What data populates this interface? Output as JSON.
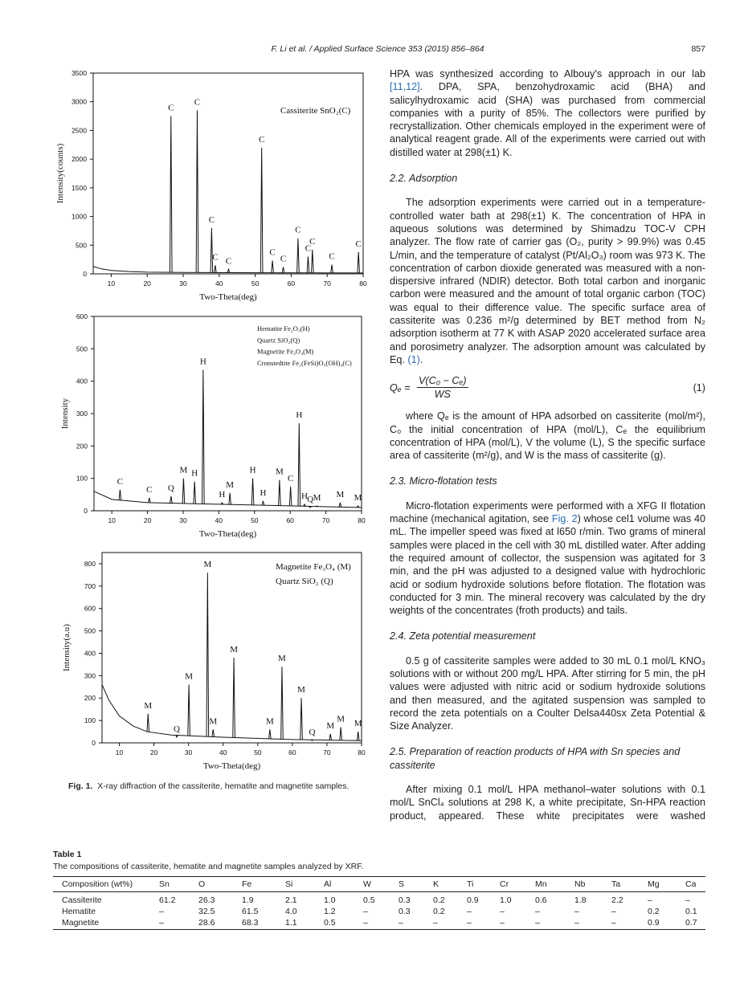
{
  "header": {
    "running_title": "F. Li et al. / Applied Surface Science 353 (2015) 856–864",
    "page": "857"
  },
  "chart_data": [
    {
      "type": "xrd",
      "legend": [
        "Cassiterite SnO₂(C)"
      ],
      "x_label": "Two-Theta(deg)",
      "y_label": "Intensity(counts)",
      "xlim": [
        5,
        80
      ],
      "ylim": [
        0,
        3500
      ],
      "xticks": [
        10,
        20,
        30,
        40,
        50,
        60,
        70,
        80
      ],
      "yticks": [
        0,
        500,
        1000,
        1500,
        2000,
        2500,
        3000,
        3500
      ],
      "background": {
        "x": [
          5,
          7,
          10,
          15,
          20,
          30,
          50,
          80
        ],
        "values": [
          130,
          90,
          60,
          40,
          30,
          25,
          20,
          15
        ]
      },
      "peaks": {
        "x": [
          26.6,
          33.9,
          37.9,
          38.9,
          42.6,
          51.8,
          54.8,
          57.8,
          61.9,
          64.7,
          65.9,
          71.3,
          78.7
        ],
        "values": [
          2750,
          2850,
          800,
          150,
          80,
          2200,
          230,
          120,
          620,
          300,
          420,
          160,
          380
        ],
        "labels": [
          "C",
          "C",
          "C",
          "C",
          "C",
          "C",
          "C",
          "C",
          "C",
          "C",
          "C",
          "C",
          "C"
        ]
      }
    },
    {
      "type": "xrd",
      "legend": [
        "Hematite Fe₂O₃(H)",
        "Quartz SiO₂(Q)",
        "Magnetite Fe₃O₄(M)",
        "Cronstedtite Fe₂(FeSi)O₅(OH)₄(C)"
      ],
      "x_label": "Two-Theta(deg)",
      "y_label": "Intensity",
      "xlim": [
        5,
        80
      ],
      "ylim": [
        0,
        600
      ],
      "xticks": [
        10,
        20,
        30,
        40,
        50,
        60,
        70,
        80
      ],
      "yticks": [
        0,
        100,
        200,
        300,
        400,
        500,
        600
      ],
      "background": {
        "x": [
          5,
          10,
          20,
          40,
          80
        ],
        "values": [
          60,
          35,
          25,
          20,
          10
        ]
      },
      "peaks": {
        "x": [
          12.3,
          20.5,
          26.6,
          30.1,
          33.2,
          35.6,
          40.9,
          43.1,
          49.5,
          52.4,
          57.0,
          60.1,
          62.5,
          64.0,
          65.6,
          67.5,
          74.0,
          79.0
        ],
        "values": [
          65,
          40,
          45,
          100,
          90,
          435,
          25,
          55,
          100,
          30,
          95,
          75,
          270,
          20,
          10,
          15,
          25,
          15
        ],
        "labels": [
          "C",
          "C",
          "Q",
          "M",
          "H",
          "H",
          "H",
          "M",
          "H",
          "H",
          "M",
          "C",
          "H",
          "H",
          "Q",
          "M",
          "M",
          "M"
        ]
      }
    },
    {
      "type": "xrd",
      "legend": [
        "Magnetite  Fe₃O₄ (M)",
        "Quartz SiO₂ (Q)"
      ],
      "x_label": "Two-Theta(deg)",
      "y_label": "Intensity(a.u)",
      "xlim": [
        5,
        80
      ],
      "ylim": [
        0,
        850
      ],
      "xticks": [
        10,
        20,
        30,
        40,
        50,
        60,
        70,
        80
      ],
      "yticks": [
        0,
        100,
        200,
        300,
        400,
        500,
        600,
        700,
        800
      ],
      "background": {
        "x": [
          5,
          7,
          10,
          14,
          18,
          25,
          40,
          60,
          80
        ],
        "values": [
          260,
          190,
          120,
          75,
          50,
          35,
          25,
          15,
          10
        ]
      },
      "peaks": {
        "x": [
          18.3,
          26.6,
          30.1,
          35.5,
          37.1,
          43.1,
          53.5,
          57.0,
          62.6,
          65.7,
          71.0,
          74.0,
          79.0
        ],
        "values": [
          130,
          25,
          260,
          760,
          60,
          380,
          60,
          340,
          200,
          10,
          40,
          70,
          50
        ],
        "labels": [
          "M",
          "Q",
          "M",
          "M",
          "M",
          "M",
          "M",
          "M",
          "M",
          "Q",
          "M",
          "M",
          "M"
        ]
      }
    }
  ],
  "figure_caption": {
    "label": "Fig. 1.",
    "text": "X-ray diffraction of the cassiterite, hematite and magnetite samples."
  },
  "sections": [
    {
      "paragraphs": [
        [
          "HPA was synthesized according to Albouy's approach in our lab ",
          "[11,12]",
          ". DPA, SPA, benzohydroxamic acid (BHA) and salicylhydroxamic acid (SHA) was purchased from commercial companies with a purity of 85%. The collectors were purified by recrystallization. Other chemicals employed in the experiment were of analytical reagent grade. All of the experiments were carried out with distilled water at 298(±1) K."
        ]
      ]
    },
    {
      "heading": "2.2.  Adsorption",
      "paragraphs": [
        [
          "The adsorption experiments were carried out in a temperature-controlled water bath at 298(±1) K. The concentration of HPA in aqueous solutions was determined by Shimadzu TOC-V CPH analyzer. The flow rate of carrier gas (O₂, purity > 99.9%) was 0.45 L/min, and the temperature of catalyst (Pt/Al₂O₃) room was 973 K. The concentration of carbon dioxide generated was measured with a non-dispersive infrared (NDIR) detector. Both total carbon and inorganic carbon were measured and the amount of total organic carbon (TOC) was equal to their difference value. The specific surface area of cassiterite was 0.236 m²/g determined by BET method from N₂ adsorption isotherm at 77 K with ASAP 2020 accelerated surface area and porosimetry analyzer. The adsorption amount was calculated by Eq. ",
          "(1)",
          "."
        ],
        [
          "where Qₑ is the amount of HPA adsorbed on cassiterite (mol/m²), C₀ the initial concentration of HPA (mol/L), Cₑ the equilibrium concentration of HPA (mol/L), V the volume (L), S the specific surface area of cassiterite (m²/g), and W is the mass of cassiterite (g)."
        ]
      ],
      "equation": {
        "lhs": "Qₑ =",
        "numerator": "V(C₀ − Cₑ)",
        "denominator": "WS",
        "number": "(1)"
      }
    },
    {
      "heading": "2.3.  Micro-flotation tests",
      "paragraphs": [
        [
          "Micro-flotation experiments were performed with a XFG II flotation machine (mechanical agitation, see ",
          "Fig. 2",
          ") whose cel1 volume was 40 mL. The impeller speed was fixed at l650 r/min. Two grams of mineral samples were placed in the cell with 30 mL distilled water. After adding the required amount of collector, the suspension was agitated for 3 min, and the pH was adjusted to a designed value with hydrochloric acid or sodium hydroxide solutions before flotation. The flotation was conducted for 3 min. The mineral recovery was calculated by the dry weights of the concentrates (froth products) and tails."
        ]
      ]
    },
    {
      "heading": "2.4.  Zeta potential measurement",
      "paragraphs": [
        [
          "0.5 g of cassiterite samples were added to 30 mL 0.1 mol/L KNO₃ solutions with or without 200 mg/L HPA. After stirring for 5 min, the pH values were adjusted with nitric acid or sodium hydroxide solutions and then measured, and the agitated suspension was sampled to record the zeta potentials on a Coulter Delsa440sx Zeta Potential & Size Analyzer."
        ]
      ]
    },
    {
      "heading": "2.5.  Preparation of reaction products of HPA with Sn species and cassiterite",
      "paragraphs": [
        [
          "After mixing 0.1 mol/L HPA methanol–water solutions with 0.1 mol/L SnCl₄ solutions at 298 K, a white precipitate, Sn-HPA reaction product, appeared. These white precipitates were washed"
        ]
      ]
    }
  ],
  "table": {
    "label": "Table 1",
    "caption": "The compositions of cassiterite, hematite and magnetite samples analyzed by XRF.",
    "header": [
      "Composition (wt%)",
      "Sn",
      "O",
      "Fe",
      "Si",
      "Al",
      "W",
      "S",
      "K",
      "Ti",
      "Cr",
      "Mn",
      "Nb",
      "Ta",
      "Mg",
      "Ca"
    ],
    "rows": [
      [
        "Cassiterite",
        "61.2",
        "26.3",
        "1.9",
        "2.1",
        "1.0",
        "0.5",
        "0.3",
        "0.2",
        "0.9",
        "1.0",
        "0.6",
        "1.8",
        "2.2",
        "–",
        "–"
      ],
      [
        "Hematite",
        "–",
        "32.5",
        "61.5",
        "4.0",
        "1.2",
        "–",
        "0.3",
        "0.2",
        "–",
        "–",
        "–",
        "–",
        "–",
        "0.2",
        "0.1"
      ],
      [
        "Magnetite",
        "–",
        "28.6",
        "68.3",
        "1.1",
        "0.5",
        "–",
        "–",
        "–",
        "–",
        "–",
        "–",
        "–",
        "–",
        "0.9",
        "0.7"
      ]
    ]
  }
}
